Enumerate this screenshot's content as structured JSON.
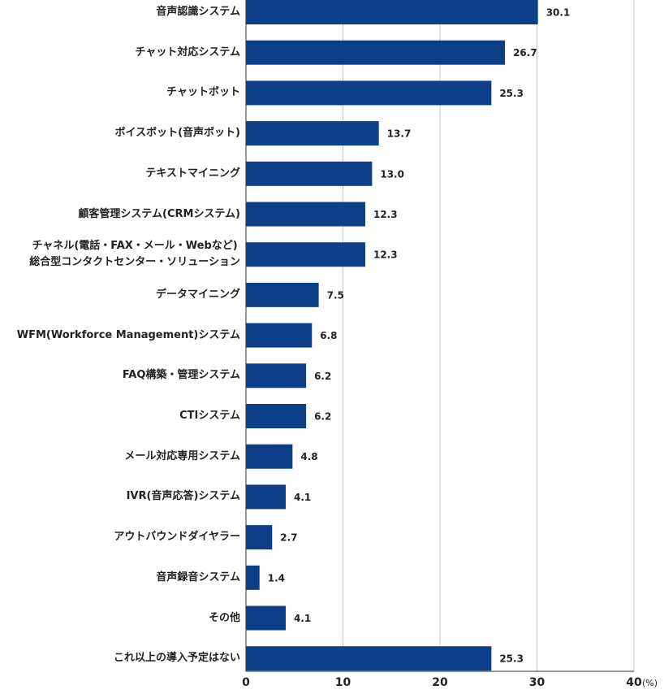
{
  "chart_data": {
    "type": "bar",
    "orientation": "horizontal",
    "categories": [
      "音声認識システム",
      "チャット対応システム",
      "チャットボット",
      "ボイスボット(音声ボット)",
      "テキストマイニング",
      "顧客管理システム(CRMシステム)",
      "チャネル(電話・FAX・メール・Webなど)\n総合型コンタクトセンター・ソリューション",
      "データマイニング",
      "WFM(Workforce Management)システム",
      "FAQ構築・管理システム",
      "CTIシステム",
      "メール対応専用システム",
      "IVR(音声応答)システム",
      "アウトバウンドダイヤラー",
      "音声録音システム",
      "その他",
      "これ以上の導入予定はない"
    ],
    "values": [
      30.1,
      26.7,
      25.3,
      13.7,
      13,
      12.3,
      12.3,
      7.5,
      6.8,
      6.2,
      6.2,
      4.8,
      4.1,
      2.7,
      1.4,
      4.1,
      25.3
    ],
    "value_labels": [
      "30.1",
      "26.7",
      "25.3",
      "13.7",
      "13.0",
      "12.3",
      "12.3",
      "7.5",
      "6.8",
      "6.2",
      "6.2",
      "4.8",
      "4.1",
      "2.7",
      "1.4",
      "4.1",
      "25.3"
    ],
    "color": "#0d3f88",
    "xlim": [
      0,
      40
    ],
    "xticks": [
      0,
      10,
      20,
      30,
      40
    ],
    "x_unit": "(%)",
    "grid": true
  }
}
